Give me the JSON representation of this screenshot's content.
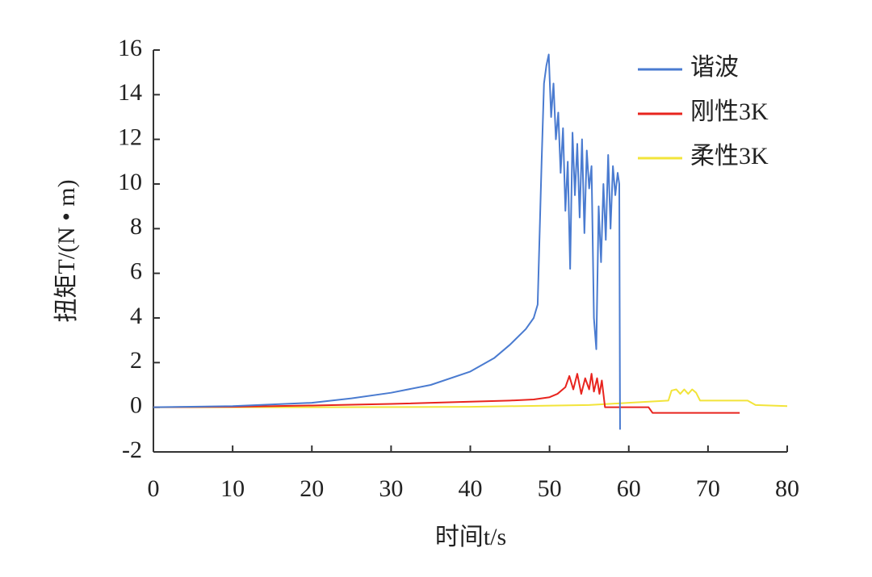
{
  "chart_data": {
    "type": "line",
    "x_label": "时间t/s",
    "y_label": "扭矩T/(N • m)",
    "xlim": [
      0,
      80
    ],
    "xticks": [
      0,
      10,
      20,
      30,
      40,
      50,
      60,
      70,
      80
    ],
    "ylim": [
      -2,
      16
    ],
    "yticks": [
      -2,
      0,
      2,
      4,
      6,
      8,
      10,
      12,
      14,
      16
    ],
    "grid": false,
    "legend": "top right",
    "series": [
      {
        "name": "谐波",
        "color": "#4a7bd0",
        "x": [
          0,
          10,
          20,
          25,
          30,
          35,
          40,
          43,
          45,
          47,
          48,
          48.5,
          49,
          49.3,
          49.6,
          49.9,
          50.2,
          50.5,
          50.8,
          51.1,
          51.4,
          51.7,
          52,
          52.3,
          52.6,
          52.9,
          53.2,
          53.5,
          53.8,
          54.1,
          54.4,
          54.7,
          55,
          55.3,
          55.6,
          55.9,
          56.2,
          56.5,
          56.8,
          57.1,
          57.4,
          57.7,
          58,
          58.3,
          58.6,
          58.8,
          58.9
        ],
        "values": [
          0,
          0.05,
          0.2,
          0.4,
          0.65,
          1.0,
          1.6,
          2.2,
          2.8,
          3.5,
          4.0,
          4.6,
          11,
          14.5,
          15.3,
          15.8,
          13,
          14.5,
          12,
          13.2,
          10.5,
          12.5,
          8.8,
          11,
          6.2,
          12.3,
          9.5,
          11.8,
          8.5,
          12,
          7.8,
          11.5,
          9.8,
          10.8,
          4,
          2.6,
          9,
          6.5,
          10,
          7.5,
          11.3,
          8,
          10.8,
          9.5,
          10.5,
          10,
          -1
        ]
      },
      {
        "name": "刚性3K",
        "color": "#e8241e",
        "x": [
          0,
          10,
          20,
          30,
          40,
          45,
          48,
          50,
          51,
          52,
          52.5,
          53,
          53.5,
          54,
          54.5,
          55,
          55.3,
          55.6,
          56,
          56.3,
          56.6,
          57,
          62.5,
          63,
          74
        ],
        "values": [
          0,
          0.02,
          0.08,
          0.15,
          0.25,
          0.3,
          0.35,
          0.45,
          0.6,
          0.9,
          1.4,
          0.8,
          1.5,
          0.6,
          1.3,
          0.8,
          1.5,
          0.7,
          1.3,
          0.6,
          1.2,
          0,
          0,
          -0.25,
          -0.25
        ]
      },
      {
        "name": "柔性3K",
        "color": "#f2e43a",
        "x": [
          0,
          20,
          40,
          55,
          60,
          65,
          65.4,
          66,
          66.5,
          67,
          67.5,
          68,
          68.5,
          69,
          75,
          76,
          80
        ],
        "values": [
          0,
          0,
          0.02,
          0.1,
          0.2,
          0.3,
          0.75,
          0.8,
          0.6,
          0.8,
          0.6,
          0.8,
          0.65,
          0.3,
          0.3,
          0.1,
          0.05
        ]
      }
    ]
  }
}
